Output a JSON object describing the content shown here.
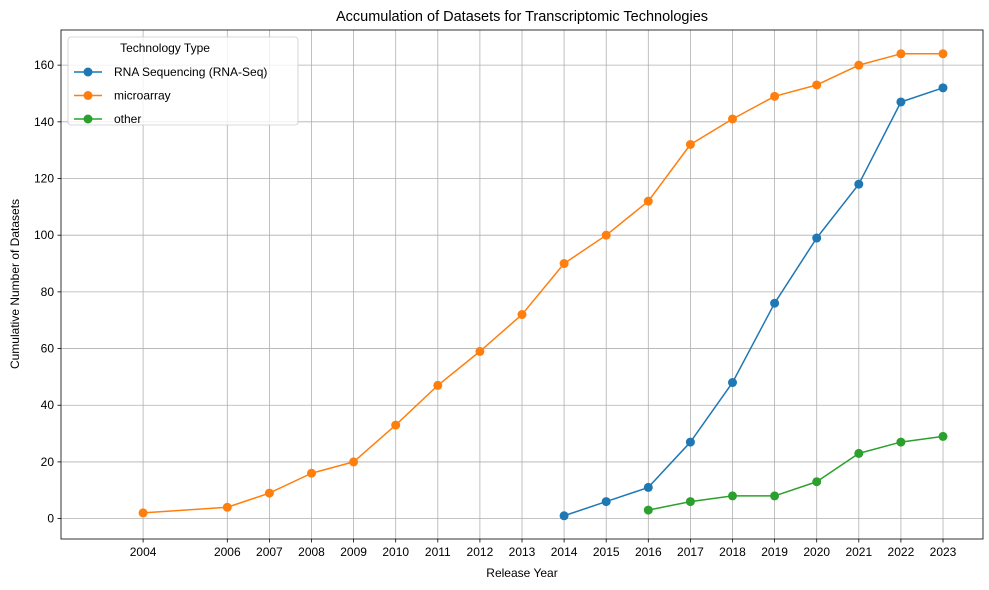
{
  "chart_data": {
    "type": "line",
    "title": "Accumulation of Datasets for Transcriptomic Technologies",
    "xlabel": "Release Year",
    "ylabel": "Cumulative Number of Datasets",
    "xlim": [
      2002.05,
      2023.95
    ],
    "ylim": [
      -7.2,
      172.4
    ],
    "xticks": [
      2004,
      2006,
      2007,
      2008,
      2009,
      2010,
      2011,
      2012,
      2013,
      2014,
      2015,
      2016,
      2017,
      2018,
      2019,
      2020,
      2021,
      2022,
      2023
    ],
    "yticks": [
      0,
      20,
      40,
      60,
      80,
      100,
      120,
      140,
      160
    ],
    "grid": true,
    "legend": {
      "title": "Technology Type",
      "placement": "top-left"
    },
    "series": [
      {
        "name": "RNA Sequencing (RNA-Seq)",
        "color": "#1f77b4",
        "x": [
          2014,
          2015,
          2016,
          2017,
          2018,
          2019,
          2020,
          2021,
          2022,
          2023
        ],
        "values": [
          1,
          6,
          11,
          27,
          48,
          76,
          99,
          118,
          147,
          152
        ]
      },
      {
        "name": "microarray",
        "color": "#ff7f0e",
        "x": [
          2004,
          2006,
          2007,
          2008,
          2009,
          2010,
          2011,
          2012,
          2013,
          2014,
          2015,
          2016,
          2017,
          2018,
          2019,
          2020,
          2021,
          2022,
          2023
        ],
        "values": [
          2,
          4,
          9,
          16,
          20,
          33,
          47,
          59,
          72,
          90,
          100,
          112,
          132,
          141,
          149,
          153,
          160,
          164,
          164
        ]
      },
      {
        "name": "other",
        "color": "#2ca02c",
        "x": [
          2016,
          2017,
          2018,
          2019,
          2020,
          2021,
          2022,
          2023
        ],
        "values": [
          3,
          6,
          8,
          8,
          13,
          23,
          27,
          29
        ]
      }
    ]
  }
}
